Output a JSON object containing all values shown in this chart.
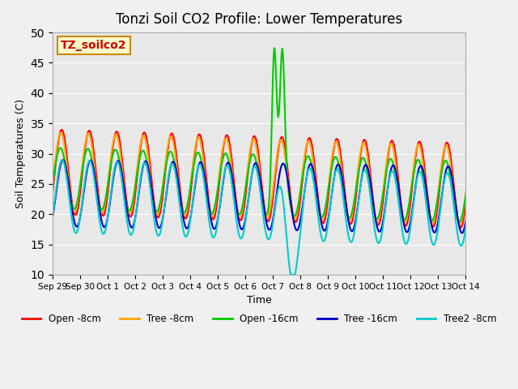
{
  "title": "Tonzi Soil CO2 Profile: Lower Temperatures",
  "ylabel": "Soil Temperatures (C)",
  "xlabel": "Time",
  "watermark": "TZ_soilco2",
  "ylim": [
    10,
    50
  ],
  "fig_bg_color": "#f0f0f0",
  "plot_bg_color": "#e8e8e8",
  "series": {
    "Open -8cm": {
      "color": "#ff0000"
    },
    "Tree -8cm": {
      "color": "#ffa500"
    },
    "Open -16cm": {
      "color": "#00cc00"
    },
    "Tree -16cm": {
      "color": "#0000cc"
    },
    "Tree2 -8cm": {
      "color": "#00cccc"
    }
  },
  "xtick_labels": [
    "Sep 29",
    "Sep 30",
    "Oct 1",
    "Oct 2",
    "Oct 3",
    "Oct 4",
    "Oct 5",
    "Oct 6",
    "Oct 7",
    "Oct 8",
    "Oct 9",
    "Oct 10",
    "Oct 11",
    "Oct 12",
    "Oct 13",
    "Oct 14"
  ],
  "ytick_labels": [
    10,
    15,
    20,
    25,
    30,
    35,
    40,
    45,
    50
  ]
}
